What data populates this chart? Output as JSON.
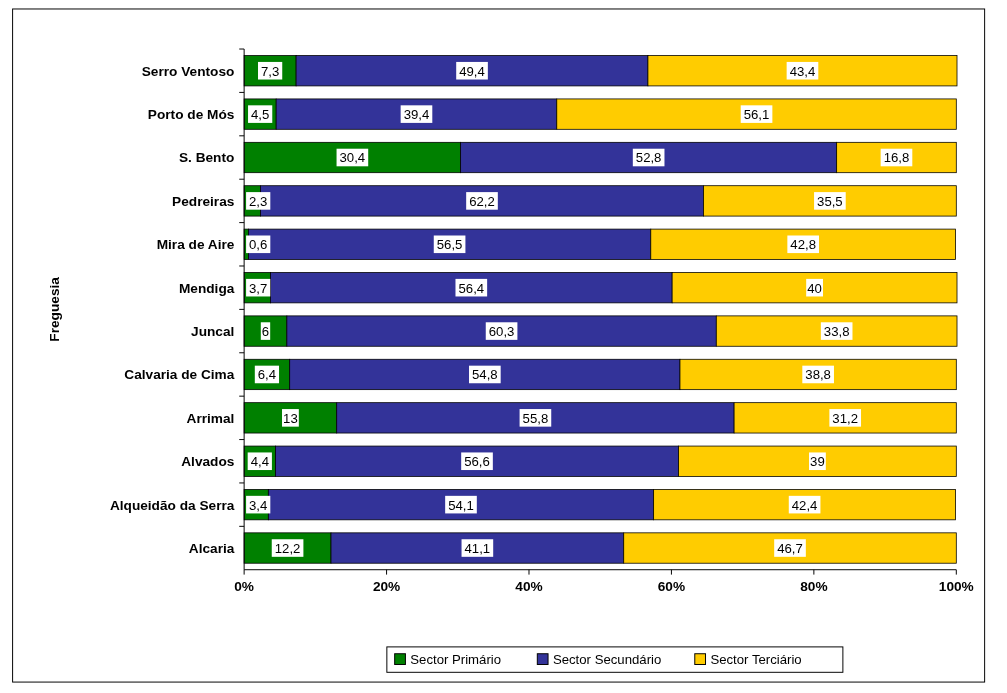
{
  "chart_data": {
    "type": "bar",
    "orientation": "horizontal",
    "stacked": true,
    "ylabel": "Freguesia",
    "categories": [
      "Serro Ventoso",
      "Porto de Mós",
      "S. Bento",
      "Pedreiras",
      "Mira de Aire",
      "Mendiga",
      "Juncal",
      "Calvaria de Cima",
      "Arrimal",
      "Alvados",
      "Alqueidão da Serra",
      "Alcaria"
    ],
    "series": [
      {
        "name": "Sector Primário",
        "color": "#008000",
        "values": [
          7.3,
          4.5,
          30.4,
          2.3,
          0.6,
          3.7,
          6,
          6.4,
          13,
          4.4,
          3.4,
          12.2
        ],
        "value_labels": [
          "7,3",
          "4,5",
          "30,4",
          "2,3",
          "0,6",
          "3,7",
          "6",
          "6,4",
          "13",
          "4,4",
          "3,4",
          "12,2"
        ]
      },
      {
        "name": "Sector Secundário",
        "color": "#333399",
        "values": [
          49.4,
          39.4,
          52.8,
          62.2,
          56.5,
          56.4,
          60.3,
          54.8,
          55.8,
          56.6,
          54.1,
          41.1
        ],
        "value_labels": [
          "49,4",
          "39,4",
          "52,8",
          "62,2",
          "56,5",
          "56,4",
          "60,3",
          "54,8",
          "55,8",
          "56,6",
          "54,1",
          "41,1"
        ]
      },
      {
        "name": "Sector Terciário",
        "color": "#ffcc00",
        "values": [
          43.4,
          56.1,
          16.8,
          35.5,
          42.8,
          40,
          33.8,
          38.8,
          31.2,
          39,
          42.4,
          46.7
        ],
        "value_labels": [
          "43,4",
          "56,1",
          "16,8",
          "35,5",
          "42,8",
          "40",
          "33,8",
          "38,8",
          "31,2",
          "39",
          "42,4",
          "46,7"
        ]
      }
    ],
    "xlim": [
      0,
      100
    ],
    "xticks": [
      {
        "value": 0,
        "label": "0%"
      },
      {
        "value": 20,
        "label": "20%"
      },
      {
        "value": 40,
        "label": "40%"
      },
      {
        "value": 60,
        "label": "60%"
      },
      {
        "value": 80,
        "label": "80%"
      },
      {
        "value": 100,
        "label": "100%"
      }
    ],
    "grid": false,
    "legend": "bottom"
  }
}
